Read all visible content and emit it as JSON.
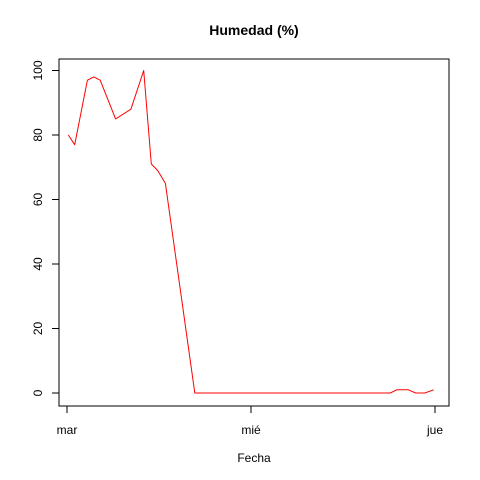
{
  "chart_data": {
    "type": "line",
    "title": "Humedad (%)",
    "xlabel": "Fecha",
    "ylabel": "",
    "x_ticks": [
      "mar",
      "mié",
      "jue"
    ],
    "y_ticks": [
      0,
      20,
      40,
      60,
      80,
      100
    ],
    "ylim": [
      0,
      100
    ],
    "grid": false,
    "series": [
      {
        "color": "#ff0000",
        "x": [
          "mar 00:10",
          "mar 01:00",
          "mar 02:40",
          "mar 03:30",
          "mar 04:20",
          "mar 06:20",
          "mar 08:20",
          "mar 10:00",
          "mar 11:00",
          "mar 11:50",
          "mar 12:50",
          "mar 16:40",
          "mié 00:00",
          "mié 04:00",
          "mié 08:00",
          "mié 12:00",
          "mié 16:00",
          "mié 18:10",
          "mié 19:00",
          "mié 20:00",
          "mié 20:30",
          "mié 21:30",
          "mié 22:40",
          "mié 23:50"
        ],
        "values": [
          80,
          77,
          97,
          98,
          97,
          85,
          88,
          100,
          71,
          69,
          65,
          0,
          0,
          0,
          0,
          0,
          0,
          0,
          1,
          1,
          1,
          0,
          0,
          1
        ]
      }
    ]
  }
}
